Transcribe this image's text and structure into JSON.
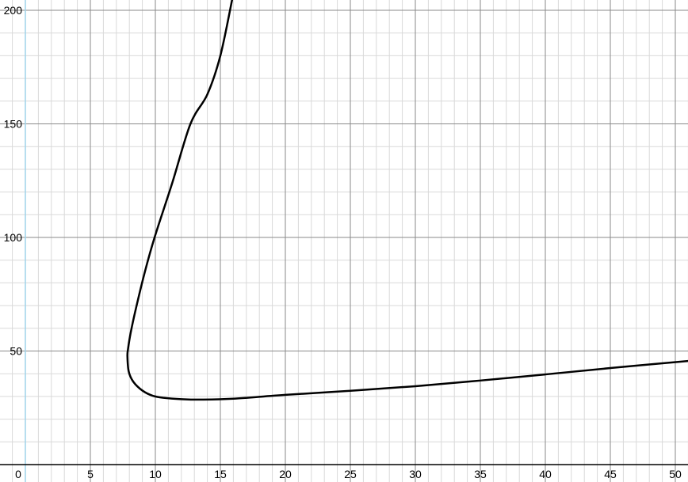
{
  "chart_data": {
    "type": "line",
    "title": "",
    "xlabel": "",
    "ylabel": "",
    "xlim": [
      -2,
      51
    ],
    "ylim": [
      -7.5,
      208
    ],
    "grid": true,
    "x_major_step": 5,
    "x_minor_step": 1,
    "y_major_step": 50,
    "y_minor_step": 10,
    "x_tick_labels": [
      "0",
      "5",
      "10",
      "15",
      "20",
      "25",
      "30",
      "35",
      "40",
      "45",
      "50"
    ],
    "y_tick_labels": [
      "50",
      "100",
      "150",
      "200"
    ],
    "colors": {
      "curve": "#000000",
      "y_axis": "#9fd3ea",
      "x_axis": "#000000",
      "major_grid": "#8a8a8a",
      "minor_grid": "#d9d9d9"
    },
    "series": [
      {
        "x": [
          15.9,
          15.0,
          14.0,
          12.7,
          11.3,
          9.94,
          9.2,
          8.5,
          8.1,
          7.9,
          7.85,
          7.95,
          8.3,
          9.0,
          9.8,
          10.65,
          12.0,
          13.6,
          16.0,
          20.0,
          25.0,
          30.0,
          35.0,
          40.0,
          45.0,
          51.0
        ],
        "y": [
          204.5,
          180.0,
          163.0,
          150.0,
          124.0,
          100.0,
          85.0,
          68.6,
          58.0,
          51.0,
          47.7,
          41.0,
          36.5,
          32.6,
          30.3,
          29.4,
          28.8,
          28.6,
          29.0,
          30.7,
          32.5,
          34.5,
          37.0,
          39.7,
          42.5,
          45.6
        ]
      }
    ]
  }
}
